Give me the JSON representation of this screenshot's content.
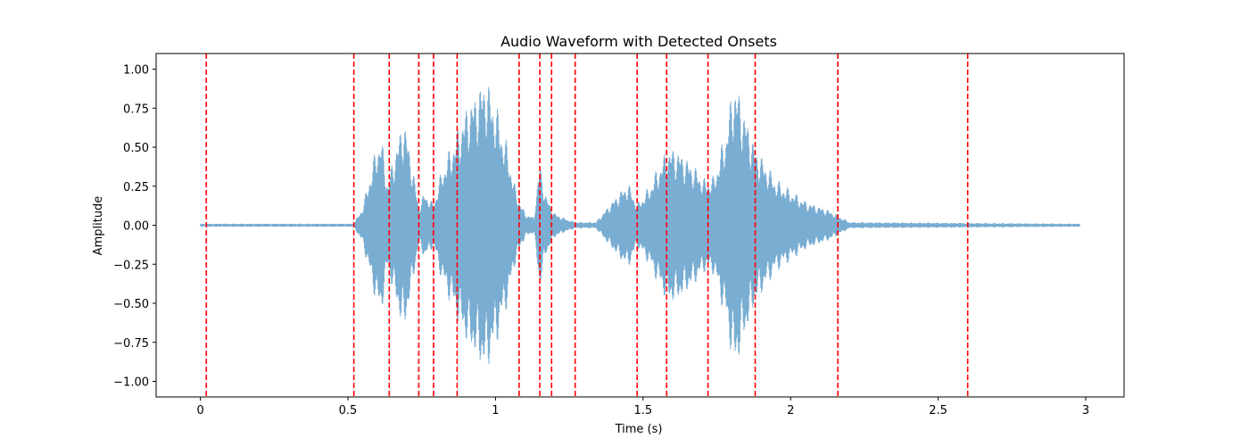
{
  "chart_data": {
    "type": "line",
    "title": "Audio Waveform with Detected Onsets",
    "xlabel": "Time (s)",
    "ylabel": "Amplitude",
    "xlim": [
      -0.15,
      3.13
    ],
    "ylim": [
      -1.1,
      1.1
    ],
    "x_ticks": [
      0,
      0.5,
      1,
      1.5,
      2,
      2.5,
      3
    ],
    "x_tick_labels": [
      "0",
      "0.5",
      "1",
      "1.5",
      "2",
      "2.5",
      "3"
    ],
    "y_ticks": [
      1.0,
      0.75,
      0.5,
      0.25,
      0.0,
      -0.25,
      -0.5,
      -0.75,
      -1.0
    ],
    "y_tick_labels": [
      "1.00",
      "0.75",
      "0.50",
      "0.25",
      "0.00",
      "−0.25",
      "−0.50",
      "−0.75",
      "−1.00"
    ],
    "grid": false,
    "series": [
      {
        "kind": "waveform",
        "color": "#1f77b4",
        "alpha": 0.6,
        "duration": 2.98,
        "envelope": [
          [
            0.0,
            0.01
          ],
          [
            0.52,
            0.01
          ],
          [
            0.55,
            0.12
          ],
          [
            0.58,
            0.38
          ],
          [
            0.61,
            0.62
          ],
          [
            0.635,
            0.28
          ],
          [
            0.66,
            0.5
          ],
          [
            0.69,
            0.72
          ],
          [
            0.72,
            0.38
          ],
          [
            0.74,
            0.12
          ],
          [
            0.76,
            0.22
          ],
          [
            0.79,
            0.14
          ],
          [
            0.82,
            0.38
          ],
          [
            0.85,
            0.52
          ],
          [
            0.88,
            0.68
          ],
          [
            0.91,
            0.82
          ],
          [
            0.94,
            0.9
          ],
          [
            0.965,
            0.99
          ],
          [
            1.0,
            0.8
          ],
          [
            1.04,
            0.52
          ],
          [
            1.07,
            0.22
          ],
          [
            1.1,
            0.08
          ],
          [
            1.13,
            0.05
          ],
          [
            1.15,
            0.42
          ],
          [
            1.17,
            0.2
          ],
          [
            1.2,
            0.08
          ],
          [
            1.23,
            0.05
          ],
          [
            1.27,
            0.02
          ],
          [
            1.34,
            0.02
          ],
          [
            1.38,
            0.12
          ],
          [
            1.42,
            0.22
          ],
          [
            1.45,
            0.28
          ],
          [
            1.48,
            0.14
          ],
          [
            1.52,
            0.25
          ],
          [
            1.55,
            0.38
          ],
          [
            1.585,
            0.52
          ],
          [
            1.62,
            0.5
          ],
          [
            1.67,
            0.4
          ],
          [
            1.71,
            0.3
          ],
          [
            1.74,
            0.32
          ],
          [
            1.78,
            0.62
          ],
          [
            1.81,
            0.98
          ],
          [
            1.84,
            0.78
          ],
          [
            1.88,
            0.52
          ],
          [
            1.95,
            0.3
          ],
          [
            2.05,
            0.16
          ],
          [
            2.13,
            0.1
          ],
          [
            2.2,
            0.02
          ],
          [
            2.98,
            0.01
          ]
        ]
      }
    ],
    "onsets": {
      "color": "#ff0000",
      "style": "dashed",
      "times": [
        0.02,
        0.52,
        0.64,
        0.74,
        0.79,
        0.87,
        1.08,
        1.15,
        1.19,
        1.27,
        1.48,
        1.58,
        1.72,
        1.88,
        2.16,
        2.6
      ]
    }
  }
}
